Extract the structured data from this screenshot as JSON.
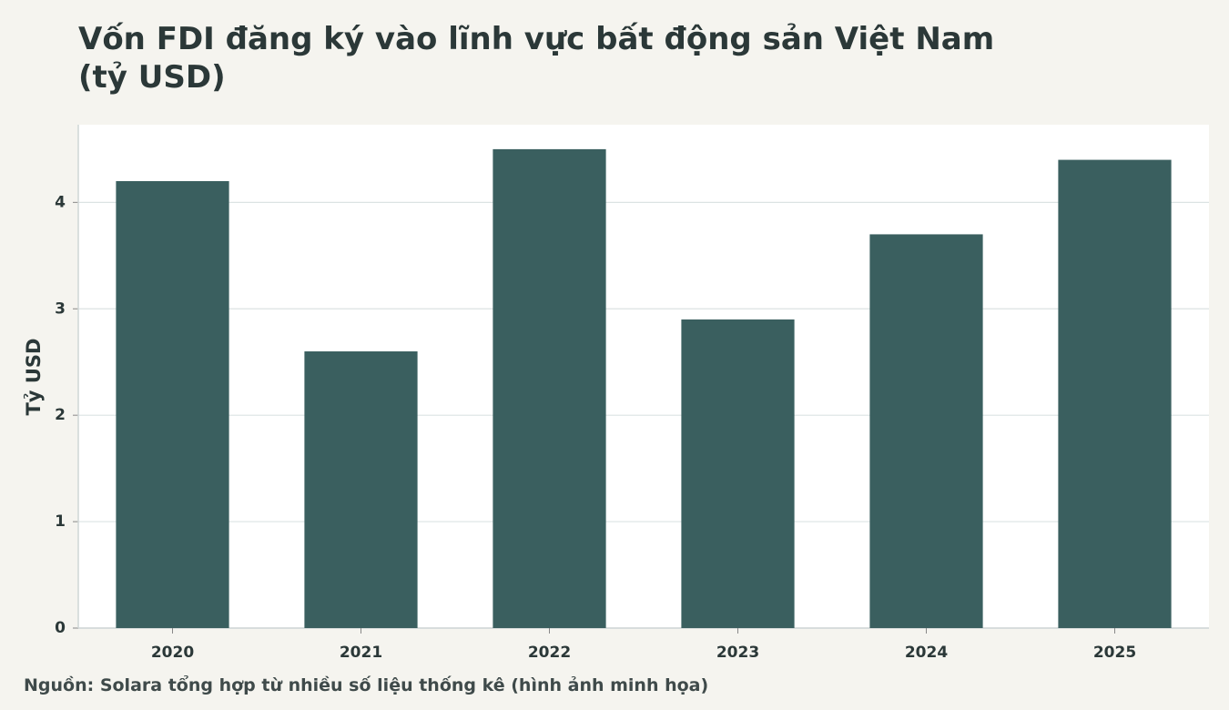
{
  "chart_data": {
    "type": "bar",
    "title": "Vốn FDI đăng ký vào lĩnh vực bất động sản Việt Nam (tỷ USD)",
    "y_label": "Tỷ USD",
    "source": "Nguồn: Solara tổng hợp từ nhiều số liệu thống kê (hình ảnh minh họa)",
    "categories": [
      "2020",
      "2021",
      "2022",
      "2023",
      "2024",
      "2025"
    ],
    "values": [
      4.2,
      2.6,
      4.5,
      2.9,
      3.7,
      4.4
    ],
    "color": "#3a5f5f",
    "ylim": [
      0,
      4.73
    ],
    "yticks": [
      0,
      1,
      2,
      3,
      4
    ],
    "grid": true
  }
}
